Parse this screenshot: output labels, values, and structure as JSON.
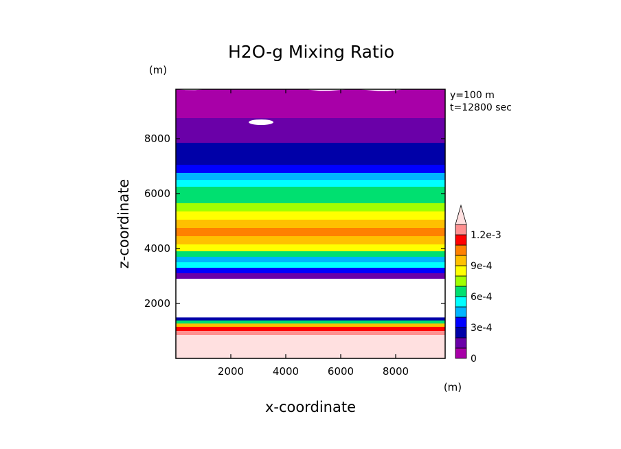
{
  "chart_data": {
    "type": "heatmap",
    "title": "H2O-g Mixing Ratio",
    "xlabel": "x-coordinate",
    "ylabel": "z-coordinate",
    "x_unit": "(m)",
    "y_unit": "(m)",
    "info_lines": [
      "y=100 m",
      "t=12800 sec"
    ],
    "xlim": [
      0,
      9800
    ],
    "ylim": [
      0,
      9800
    ],
    "x_ticks": [
      2000,
      4000,
      6000,
      8000
    ],
    "y_ticks": [
      2000,
      4000,
      6000,
      8000
    ],
    "colorbar": {
      "min": 0,
      "max": 0.0012,
      "step": 0.0001,
      "extend": "max",
      "labels": [
        {
          "value": 0,
          "text": "0"
        },
        {
          "value": 0.0003,
          "text": "3e-4"
        },
        {
          "value": 0.0006,
          "text": "6e-4"
        },
        {
          "value": 0.0009,
          "text": "9e-4"
        },
        {
          "value": 0.0012,
          "text": "1.2e-3"
        }
      ],
      "colors": [
        "#a800a8",
        "#6a00a8",
        "#0000a8",
        "#0000ff",
        "#00b4ff",
        "#00ffff",
        "#00e070",
        "#a0ff00",
        "#ffff00",
        "#ffc000",
        "#ff8000",
        "#ff0000",
        "#ff9090"
      ],
      "over_color": "#ffe0e0"
    },
    "profile": [
      {
        "z": 0,
        "level": 14
      },
      {
        "z": 500,
        "level": 14
      },
      {
        "z": 1000,
        "level": 12
      },
      {
        "z": 1150,
        "level": 11
      },
      {
        "z": 1300,
        "level": 9
      },
      {
        "z": 1420,
        "level": 6
      },
      {
        "z": 1530,
        "level": 2
      },
      {
        "z": 1640,
        "level": -1
      },
      {
        "z": 2900,
        "level": -1
      },
      {
        "z": 3050,
        "level": 1
      },
      {
        "z": 3250,
        "level": 3
      },
      {
        "z": 3450,
        "level": 5
      },
      {
        "z": 3650,
        "level": 4
      },
      {
        "z": 3850,
        "level": 6
      },
      {
        "z": 4050,
        "level": 8
      },
      {
        "z": 4300,
        "level": 9
      },
      {
        "z": 4600,
        "level": 10
      },
      {
        "z": 4900,
        "level": 9
      },
      {
        "z": 5200,
        "level": 8
      },
      {
        "z": 5500,
        "level": 7
      },
      {
        "z": 5800,
        "level": 6
      },
      {
        "z": 6100,
        "level": 6
      },
      {
        "z": 6400,
        "level": 5
      },
      {
        "z": 6650,
        "level": 4
      },
      {
        "z": 6900,
        "level": 3
      },
      {
        "z": 7200,
        "level": 2
      },
      {
        "z": 7600,
        "level": 2
      },
      {
        "z": 8000,
        "level": 1
      },
      {
        "z": 8500,
        "level": 1
      },
      {
        "z": 8900,
        "level": 0
      },
      {
        "z": 9800,
        "level": 0
      }
    ]
  }
}
